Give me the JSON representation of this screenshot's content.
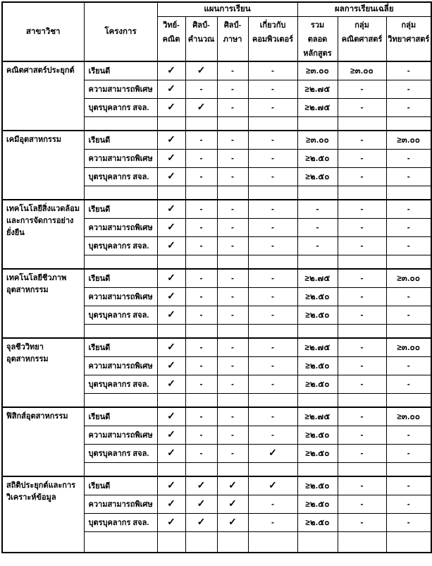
{
  "header": {
    "major": "สาขาวิชา",
    "program": "โครงการ",
    "plan_group": "แผนการเรียน",
    "gpa_group": "ผลการเรียนเฉลี่ย",
    "plan_cols": [
      "วิทย์-\nคณิต",
      "ศิลป์-\nคำนวณ",
      "ศิลป์-\nภาษา",
      "เกี่ยวกับ\nคอมพิวเตอร์"
    ],
    "gpa_cols": [
      "รวม\nตลอด\nหลักสูตร",
      "กลุ่ม\nคณิตศาสตร์",
      "กลุ่ม\nวิทยาศาสตร์"
    ]
  },
  "blocks": [
    {
      "major": "คณิตศาสตร์ประยุกต์",
      "rows": [
        {
          "program": "เรียนดี",
          "plan": [
            "✓",
            "✓",
            "-",
            "-"
          ],
          "gpa": [
            "≥๓.๐๐",
            "≥๓.๐๐",
            "-"
          ]
        },
        {
          "program": "ความสามารถพิเศษ",
          "plan": [
            "✓",
            "-",
            "-",
            "-"
          ],
          "gpa": [
            "≥๒.๗๕",
            "-",
            "-"
          ]
        },
        {
          "program": "บุตรบุคลากร สจล.",
          "plan": [
            "✓",
            "✓",
            "-",
            "-"
          ],
          "gpa": [
            "≥๒.๗๕",
            "-",
            "-"
          ]
        }
      ]
    },
    {
      "major": "เคมีอุตสาหกรรม",
      "rows": [
        {
          "program": "เรียนดี",
          "plan": [
            "✓",
            "-",
            "-",
            "-"
          ],
          "gpa": [
            "≥๓.๐๐",
            "-",
            "≥๓.๐๐"
          ]
        },
        {
          "program": "ความสามารถพิเศษ",
          "plan": [
            "✓",
            "-",
            "-",
            "-"
          ],
          "gpa": [
            "≥๒.๕๐",
            "-",
            "-"
          ]
        },
        {
          "program": "บุตรบุคลากร สจล.",
          "plan": [
            "✓",
            "-",
            "-",
            "-"
          ],
          "gpa": [
            "≥๒.๕๐",
            "-",
            "-"
          ]
        }
      ]
    },
    {
      "major": "เทคโนโลยีสิ่งแวดล้อม\nและการจัดการอย่าง\nยั่งยืน",
      "rows": [
        {
          "program": "เรียนดี",
          "plan": [
            "✓",
            "-",
            "-",
            "-"
          ],
          "gpa": [
            "-",
            "-",
            "-"
          ]
        },
        {
          "program": "ความสามารถพิเศษ",
          "plan": [
            "✓",
            "-",
            "-",
            "-"
          ],
          "gpa": [
            "-",
            "-",
            "-"
          ]
        },
        {
          "program": "บุตรบุคลากร สจล.",
          "plan": [
            "✓",
            "-",
            "-",
            "-"
          ],
          "gpa": [
            "-",
            "-",
            "-"
          ]
        }
      ]
    },
    {
      "major": "เทคโนโลยีชีวภาพ\nอุตสาหกรรม",
      "rows": [
        {
          "program": "เรียนดี",
          "plan": [
            "✓",
            "-",
            "-",
            "-"
          ],
          "gpa": [
            "≥๒.๗๕",
            "-",
            "≥๓.๐๐"
          ]
        },
        {
          "program": "ความสามารถพิเศษ",
          "plan": [
            "✓",
            "-",
            "-",
            "-"
          ],
          "gpa": [
            "≥๒.๕๐",
            "-",
            "-"
          ]
        },
        {
          "program": "บุตรบุคลากร สจล.",
          "plan": [
            "✓",
            "-",
            "-",
            "-"
          ],
          "gpa": [
            "≥๒.๕๐",
            "-",
            "-"
          ]
        }
      ]
    },
    {
      "major": "จุลชีววิทยา\nอุตสาหกรรม",
      "rows": [
        {
          "program": "เรียนดี",
          "plan": [
            "✓",
            "-",
            "-",
            "-"
          ],
          "gpa": [
            "≥๒.๗๕",
            "-",
            "≥๓.๐๐"
          ]
        },
        {
          "program": "ความสามารถพิเศษ",
          "plan": [
            "✓",
            "-",
            "-",
            "-"
          ],
          "gpa": [
            "≥๒.๕๐",
            "-",
            "-"
          ]
        },
        {
          "program": "บุตรบุคลากร สจล.",
          "plan": [
            "✓",
            "-",
            "-",
            "-"
          ],
          "gpa": [
            "≥๒.๕๐",
            "-",
            "-"
          ]
        }
      ]
    },
    {
      "major": "ฟิสิกส์อุตสาหกรรม",
      "rows": [
        {
          "program": "เรียนดี",
          "plan": [
            "✓",
            "-",
            "-",
            "-"
          ],
          "gpa": [
            "≥๒.๗๕",
            "-",
            "≥๓.๐๐"
          ]
        },
        {
          "program": "ความสามารถพิเศษ",
          "plan": [
            "✓",
            "-",
            "-",
            "-"
          ],
          "gpa": [
            "≥๒.๕๐",
            "-",
            "-"
          ]
        },
        {
          "program": "บุตรบุคลากร สจล.",
          "plan": [
            "✓",
            "-",
            "-",
            "✓"
          ],
          "gpa": [
            "≥๒.๕๐",
            "-",
            "-"
          ]
        }
      ]
    },
    {
      "major": "สถิติประยุกต์และการ\nวิเคราะห์ข้อมูล",
      "rows": [
        {
          "program": "เรียนดี",
          "plan": [
            "✓",
            "✓",
            "✓",
            "✓"
          ],
          "gpa": [
            "≥๒.๕๐",
            "-",
            "-"
          ]
        },
        {
          "program": "ความสามารถพิเศษ",
          "plan": [
            "✓",
            "✓",
            "✓",
            "-"
          ],
          "gpa": [
            "≥๒.๕๐",
            "-",
            "-"
          ]
        },
        {
          "program": "บุตรบุคลากร สจล.",
          "plan": [
            "✓",
            "✓",
            "✓",
            "-"
          ],
          "gpa": [
            "≥๒.๕๐",
            "-",
            "-"
          ]
        }
      ]
    }
  ]
}
